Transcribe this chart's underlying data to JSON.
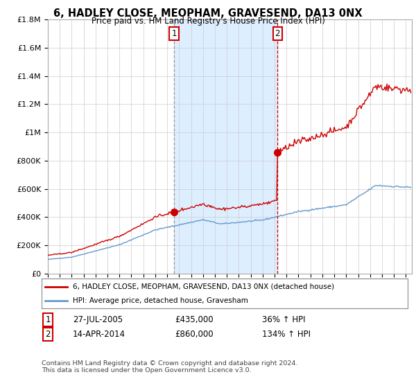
{
  "title": "6, HADLEY CLOSE, MEOPHAM, GRAVESEND, DA13 0NX",
  "subtitle": "Price paid vs. HM Land Registry's House Price Index (HPI)",
  "ylim": [
    0,
    1800000
  ],
  "yticks": [
    0,
    200000,
    400000,
    600000,
    800000,
    1000000,
    1200000,
    1400000,
    1600000,
    1800000
  ],
  "ytick_labels": [
    "£0",
    "£200K",
    "£400K",
    "£600K",
    "£800K",
    "£1M",
    "£1.2M",
    "£1.4M",
    "£1.6M",
    "£1.8M"
  ],
  "year_start": 1995,
  "year_end": 2025,
  "t1_year": 2005.572,
  "t2_year": 2014.278,
  "t1_price": 435000,
  "t2_price": 860000,
  "transaction1": {
    "date": "27-JUL-2005",
    "price": "£435,000",
    "hpi_pct": "36% ↑ HPI"
  },
  "transaction2": {
    "date": "14-APR-2014",
    "price": "£860,000",
    "hpi_pct": "134% ↑ HPI"
  },
  "legend_property": "6, HADLEY CLOSE, MEOPHAM, GRAVESEND, DA13 0NX (detached house)",
  "legend_hpi": "HPI: Average price, detached house, Gravesham",
  "footnote": "Contains HM Land Registry data © Crown copyright and database right 2024.\nThis data is licensed under the Open Government Licence v3.0.",
  "property_color": "#cc0000",
  "hpi_color": "#6699cc",
  "shade_color": "#ddeeff",
  "background_color": "#ffffff",
  "grid_color": "#cccccc",
  "vline1_color": "#aaaaaa",
  "vline2_color": "#cc0000"
}
